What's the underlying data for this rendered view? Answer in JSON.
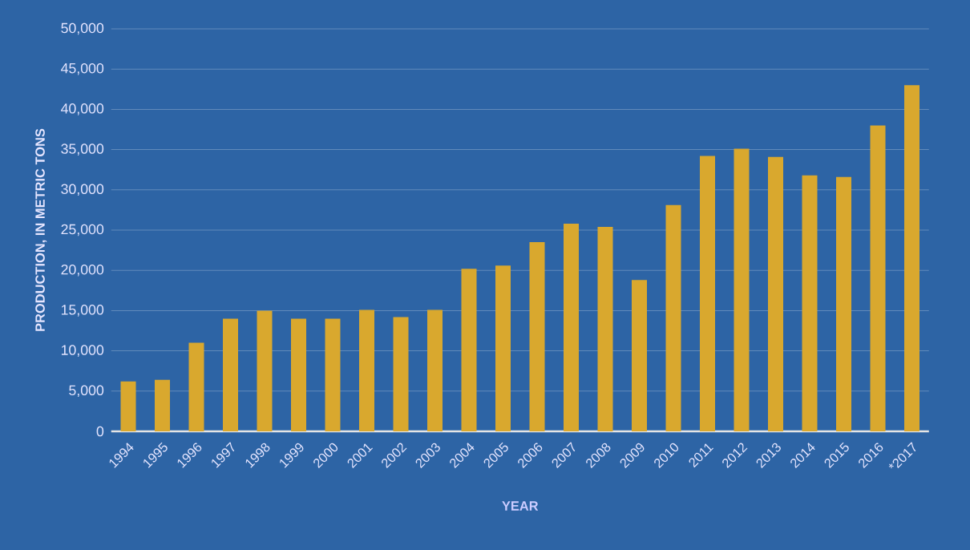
{
  "chart_data": {
    "type": "bar",
    "xlabel": "YEAR",
    "ylabel": "PRODUCTION, IN METRIC TONS",
    "categories": [
      "1994",
      "1995",
      "1996",
      "1997",
      "1998",
      "1999",
      "2000",
      "2001",
      "2002",
      "2003",
      "2004",
      "2005",
      "2006",
      "2007",
      "2008",
      "2009",
      "2010",
      "2011",
      "2012",
      "2013",
      "2014",
      "2015",
      "2016",
      "*2017"
    ],
    "values": [
      6200,
      6400,
      11000,
      14000,
      15000,
      14000,
      14000,
      15100,
      14200,
      15100,
      20200,
      20600,
      23500,
      25800,
      25400,
      18800,
      28100,
      34200,
      35100,
      34100,
      31800,
      31600,
      38000,
      43000
    ],
    "color": "#d9a82e",
    "ylim": [
      0,
      50000
    ],
    "yticks": [
      {
        "value": 0,
        "label": "0"
      },
      {
        "value": 5000,
        "label": "5,000"
      },
      {
        "value": 10000,
        "label": "10,000"
      },
      {
        "value": 15000,
        "label": "15,000"
      },
      {
        "value": 20000,
        "label": "20,000"
      },
      {
        "value": 25000,
        "label": "25,000"
      },
      {
        "value": 30000,
        "label": "30,000"
      },
      {
        "value": 35000,
        "label": "35,000"
      },
      {
        "value": 40000,
        "label": "40,000"
      },
      {
        "value": 45000,
        "label": "45,000"
      },
      {
        "value": 50000,
        "label": "50,000"
      }
    ],
    "grid": "y"
  }
}
